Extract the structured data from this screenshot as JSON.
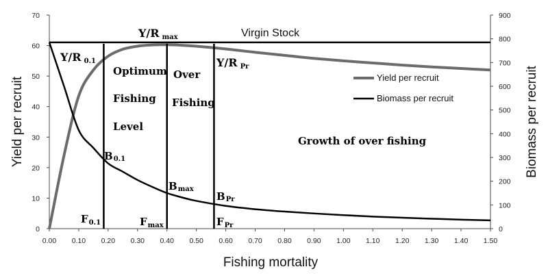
{
  "chart_data": {
    "type": "line",
    "title": "",
    "xlabel": "Fishing mortality",
    "ylabel_left": "Yield per recruit",
    "ylabel_right": "Biomass per recruit",
    "xlim": [
      0,
      1.5
    ],
    "ylim_left": [
      0,
      70
    ],
    "ylim_right": [
      0,
      900
    ],
    "x_ticks": [
      "0.00",
      "0.10",
      "0.20",
      "0.30",
      "0.40",
      "0.50",
      "0.60",
      "0.70",
      "0.80",
      "0.90",
      "1.00",
      "1.10",
      "1.20",
      "1.30",
      "1.40",
      "1.50"
    ],
    "y_left_ticks": [
      "0",
      "10",
      "20",
      "30",
      "40",
      "50",
      "60",
      "70"
    ],
    "y_right_ticks": [
      "0",
      "100",
      "200",
      "300",
      "400",
      "500",
      "600",
      "700",
      "800",
      "900"
    ],
    "legend_position": "right",
    "series": [
      {
        "name": "Yield per recruit",
        "axis": "left",
        "color": "#6b6b6b",
        "x": [
          0.0,
          0.05,
          0.1,
          0.15,
          0.2,
          0.25,
          0.3,
          0.35,
          0.4,
          0.45,
          0.5,
          0.6,
          0.7,
          0.8,
          0.9,
          1.0,
          1.1,
          1.2,
          1.3,
          1.4,
          1.5
        ],
        "y": [
          0.0,
          24.0,
          43.5,
          52.0,
          56.5,
          58.8,
          59.8,
          60.2,
          60.3,
          60.1,
          59.8,
          58.9,
          57.8,
          56.8,
          55.8,
          55.0,
          54.3,
          53.6,
          53.0,
          52.5,
          52.0
        ]
      },
      {
        "name": "Biomass per recruit",
        "axis": "right",
        "color": "#000000",
        "x": [
          0.0,
          0.05,
          0.1,
          0.15,
          0.2,
          0.25,
          0.3,
          0.35,
          0.4,
          0.45,
          0.5,
          0.6,
          0.7,
          0.8,
          0.9,
          1.0,
          1.1,
          1.2,
          1.3,
          1.4,
          1.5
        ],
        "y": [
          785,
          600,
          415,
          340,
          275,
          240,
          205,
          176,
          150,
          132,
          117,
          96,
          82,
          72,
          64,
          57,
          51,
          46,
          42,
          38,
          35
        ]
      }
    ],
    "virgin_stock": {
      "value": 785,
      "label": "Virgin Stock"
    },
    "reference_lines": [
      {
        "x": 0.185,
        "label": "F",
        "sub": "0.1"
      },
      {
        "x": 0.4,
        "label": "F",
        "sub": "max"
      },
      {
        "x": 0.56,
        "label": "F",
        "sub": "Pr"
      }
    ],
    "annotations": {
      "yr01": {
        "main": "Y/R",
        "sub": "0.1"
      },
      "yrmax": {
        "main": "Y/R",
        "sub": "max"
      },
      "yrpr": {
        "main": "Y/R",
        "sub": "Pr"
      },
      "b01": {
        "main": "B",
        "sub": "0.1"
      },
      "bmax": {
        "main": "B",
        "sub": "max"
      },
      "bpr": {
        "main": "B",
        "sub": "Pr"
      },
      "optimum": [
        "Optimum",
        "Fishing",
        "Level"
      ],
      "over": [
        "Over",
        "Fishing"
      ],
      "growth": "Growth of over fishing"
    }
  }
}
